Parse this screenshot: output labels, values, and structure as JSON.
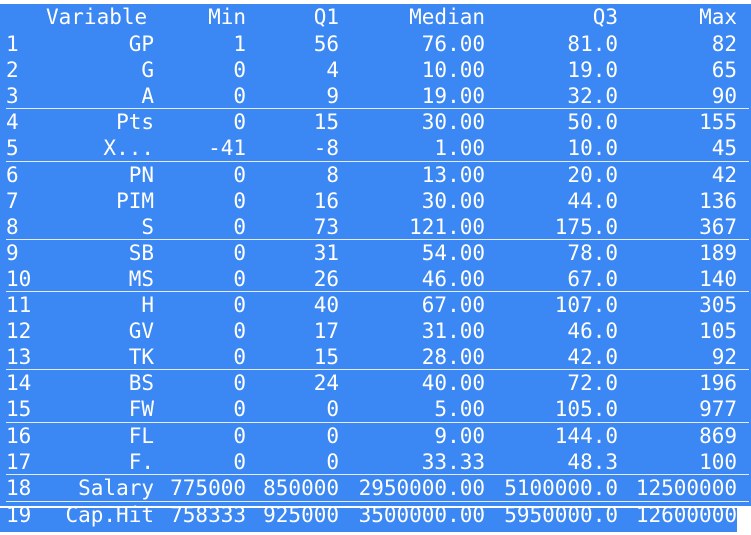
{
  "colors": {
    "background": "#3b87f3",
    "text": "#ffffff",
    "separator": "#e6ecf6"
  },
  "columns": [
    "Variable",
    "Min",
    "Q1",
    "Median",
    "Q3",
    "Max"
  ],
  "rows": [
    {
      "idx": "1",
      "var": "GP",
      "min": "1",
      "q1": "56",
      "median": "76.00",
      "q3": "81.0",
      "max": "82"
    },
    {
      "idx": "2",
      "var": "G",
      "min": "0",
      "q1": "4",
      "median": "10.00",
      "q3": "19.0",
      "max": "65"
    },
    {
      "idx": "3",
      "var": "A",
      "min": "0",
      "q1": "9",
      "median": "19.00",
      "q3": "32.0",
      "max": "90"
    },
    {
      "idx": "4",
      "var": "Pts",
      "min": "0",
      "q1": "15",
      "median": "30.00",
      "q3": "50.0",
      "max": "155"
    },
    {
      "idx": "5",
      "var": "X...",
      "min": "-41",
      "q1": "-8",
      "median": "1.00",
      "q3": "10.0",
      "max": "45"
    },
    {
      "idx": "6",
      "var": "PN",
      "min": "0",
      "q1": "8",
      "median": "13.00",
      "q3": "20.0",
      "max": "42"
    },
    {
      "idx": "7",
      "var": "PIM",
      "min": "0",
      "q1": "16",
      "median": "30.00",
      "q3": "44.0",
      "max": "136"
    },
    {
      "idx": "8",
      "var": "S",
      "min": "0",
      "q1": "73",
      "median": "121.00",
      "q3": "175.0",
      "max": "367"
    },
    {
      "idx": "9",
      "var": "SB",
      "min": "0",
      "q1": "31",
      "median": "54.00",
      "q3": "78.0",
      "max": "189"
    },
    {
      "idx": "10",
      "var": "MS",
      "min": "0",
      "q1": "26",
      "median": "46.00",
      "q3": "67.0",
      "max": "140"
    },
    {
      "idx": "11",
      "var": "H",
      "min": "0",
      "q1": "40",
      "median": "67.00",
      "q3": "107.0",
      "max": "305"
    },
    {
      "idx": "12",
      "var": "GV",
      "min": "0",
      "q1": "17",
      "median": "31.00",
      "q3": "46.0",
      "max": "105"
    },
    {
      "idx": "13",
      "var": "TK",
      "min": "0",
      "q1": "15",
      "median": "28.00",
      "q3": "42.0",
      "max": "92"
    },
    {
      "idx": "14",
      "var": "BS",
      "min": "0",
      "q1": "24",
      "median": "40.00",
      "q3": "72.0",
      "max": "196"
    },
    {
      "idx": "15",
      "var": "FW",
      "min": "0",
      "q1": "0",
      "median": "5.00",
      "q3": "105.0",
      "max": "977"
    },
    {
      "idx": "16",
      "var": "FL",
      "min": "0",
      "q1": "0",
      "median": "9.00",
      "q3": "144.0",
      "max": "869"
    },
    {
      "idx": "17",
      "var": "F.",
      "min": "0",
      "q1": "0",
      "median": "33.33",
      "q3": "48.3",
      "max": "100"
    },
    {
      "idx": "18",
      "var": "Salary",
      "min": "775000",
      "q1": "850000",
      "median": "2950000.00",
      "q3": "5100000.0",
      "max": "12500000"
    },
    {
      "idx": "19",
      "var": "Cap.Hit",
      "min": "758333",
      "q1": "925000",
      "median": "3500000.00",
      "q3": "5950000.0",
      "max": "12600000"
    }
  ]
}
